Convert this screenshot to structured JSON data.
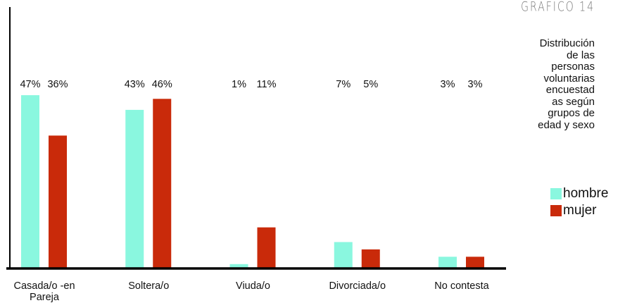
{
  "chart_data": {
    "type": "bar",
    "title": "GRAFICO 14",
    "subtitle": [
      "Distribución",
      "de las",
      "personas",
      "voluntarias",
      "encuestad",
      "as según",
      "grupos de",
      "edad y sexo"
    ],
    "categories": [
      "Casada/o -en Pareja",
      "Soltera/o",
      "Viuda/o",
      "Divorciada/o",
      "No contesta"
    ],
    "series": [
      {
        "name": "hombre",
        "color": "#8af7df",
        "values": [
          47,
          43,
          1,
          7,
          3
        ],
        "value_labels": [
          "47%",
          "43%",
          "1%",
          "7%",
          "3%"
        ]
      },
      {
        "name": "mujer",
        "color": "#c92a0a",
        "values": [
          36,
          46,
          11,
          5,
          3
        ],
        "value_labels": [
          "36%",
          "46%",
          "11%",
          "5%",
          "3%"
        ]
      }
    ],
    "ylim": [
      0,
      71
    ],
    "legend": "right"
  }
}
